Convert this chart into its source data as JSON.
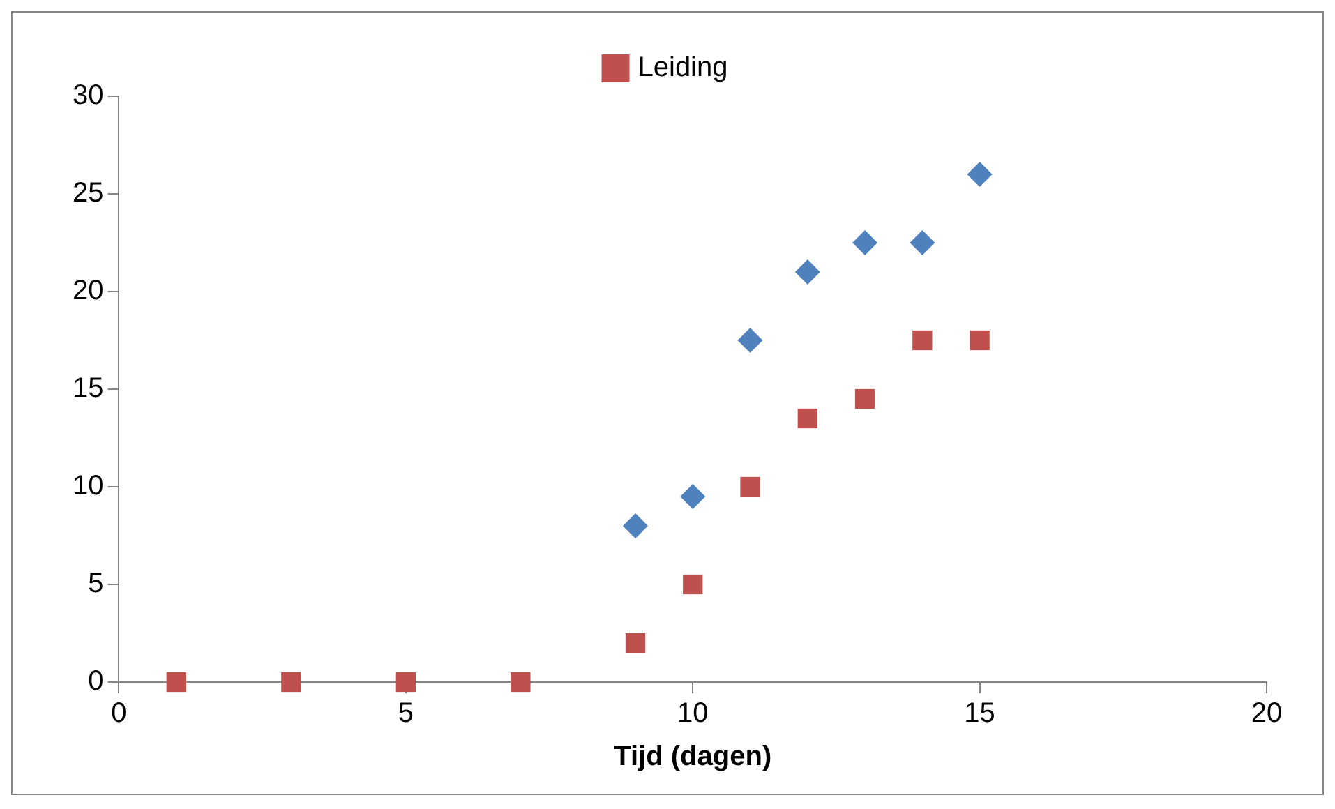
{
  "chart_data": {
    "type": "scatter",
    "xlabel": "Tijd (dagen)",
    "xlim": [
      0,
      20
    ],
    "xticks": [
      0,
      5,
      10,
      15,
      20
    ],
    "ylim": [
      0,
      30
    ],
    "yticks": [
      0,
      5,
      10,
      15,
      20,
      25,
      30
    ],
    "grid": false,
    "legend": "top",
    "series": [
      {
        "color": "#4f81bd",
        "marker": "diamond",
        "x": [
          9,
          10,
          11,
          12,
          13,
          14,
          15
        ],
        "values": [
          8,
          9.5,
          17.5,
          21,
          22.5,
          22.5,
          26
        ]
      },
      {
        "name": "Leiding",
        "color": "#c0504d",
        "marker": "square",
        "x": [
          1,
          3,
          5,
          7,
          9,
          10,
          11,
          12,
          13,
          14,
          15
        ],
        "values": [
          0,
          0,
          0,
          0,
          2,
          5,
          10,
          13.5,
          14.5,
          17.5,
          17.5
        ]
      }
    ]
  }
}
